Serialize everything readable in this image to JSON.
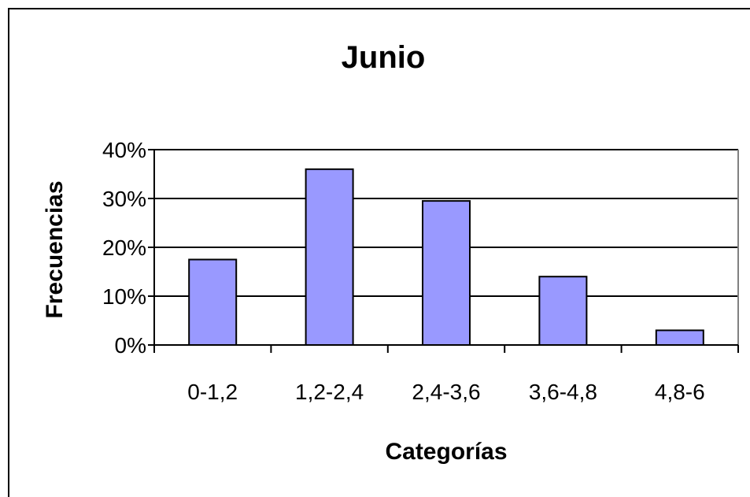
{
  "chart_data": {
    "type": "bar",
    "title": "Junio",
    "xlabel": "Categorías",
    "ylabel": "Frecuencias",
    "categories": [
      "0-1,2",
      "1,2-2,4",
      "2,4-3,6",
      "3,6-4,8",
      "4,8-6"
    ],
    "values": [
      17.5,
      36,
      29.5,
      14,
      3
    ],
    "y_tick_labels": [
      "0%",
      "10%",
      "20%",
      "30%",
      "40%"
    ],
    "y_ticks": [
      0,
      10,
      20,
      30,
      40
    ],
    "ylim": [
      0,
      40
    ],
    "grid": true,
    "legend": "none",
    "colors": {
      "bar_fill": "#9999ff",
      "bar_stroke": "#000000",
      "grid": "#000000",
      "plot_border": "#808080"
    }
  }
}
